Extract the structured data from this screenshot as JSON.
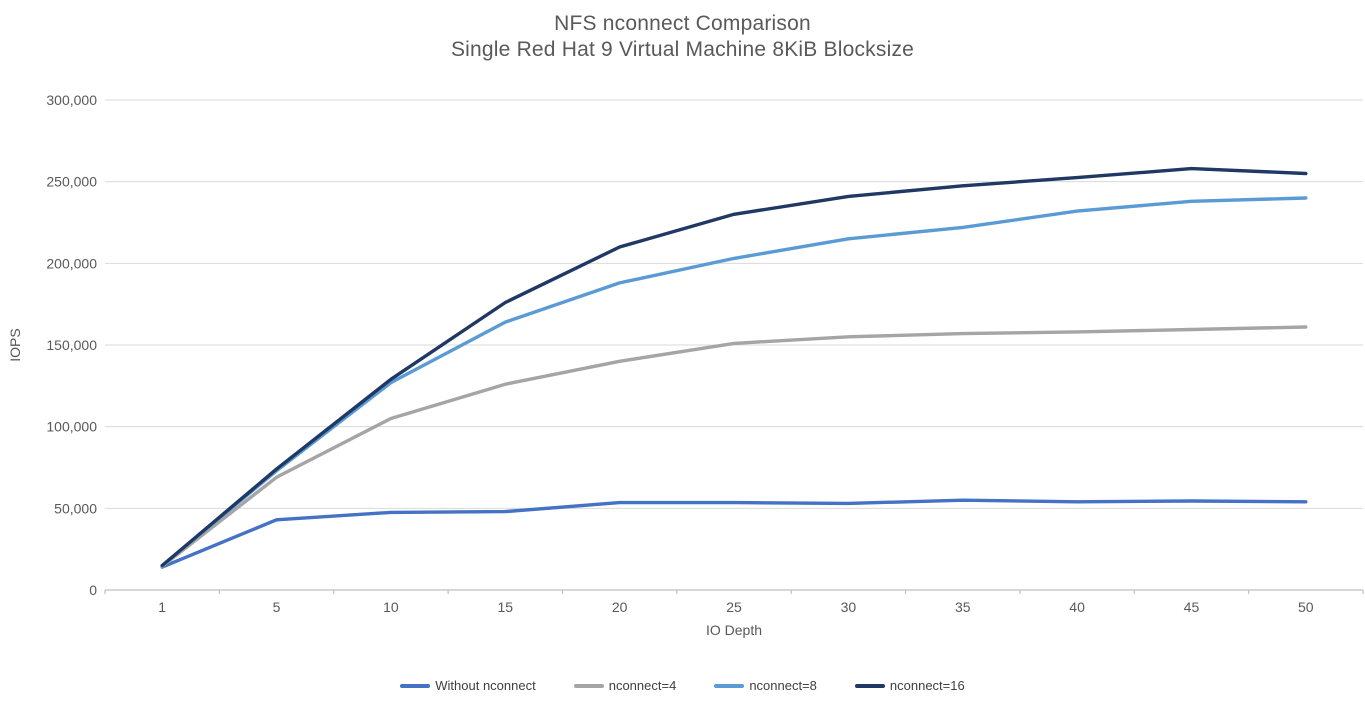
{
  "title": {
    "line1": "NFS nconnect Comparison",
    "line2": "Single Red Hat 9 Virtual Machine 8KiB Blocksize"
  },
  "chart_data": {
    "type": "line",
    "title": "NFS nconnect Comparison",
    "subtitle": "Single Red Hat 9 Virtual Machine 8KiB Blocksize",
    "xlabel": "IO Depth",
    "ylabel": "IOPS",
    "categories": [
      1,
      5,
      10,
      15,
      20,
      25,
      30,
      35,
      40,
      45,
      50
    ],
    "series": [
      {
        "name": "Without nconnect",
        "color": "#4472C4",
        "values": [
          14000,
          43000,
          47500,
          48000,
          53500,
          53500,
          53000,
          55000,
          54000,
          54500,
          54000
        ]
      },
      {
        "name": "nconnect=4",
        "color": "#A5A5A5",
        "values": [
          14500,
          69000,
          105000,
          126000,
          140000,
          151000,
          155000,
          157000,
          158000,
          159500,
          161000
        ]
      },
      {
        "name": "nconnect=8",
        "color": "#5B9BD5",
        "values": [
          15000,
          73000,
          127000,
          164000,
          188000,
          203000,
          215000,
          222000,
          232000,
          238000,
          240000
        ]
      },
      {
        "name": "nconnect=16",
        "color": "#1F3864",
        "values": [
          15000,
          74000,
          129000,
          176000,
          210000,
          230000,
          241000,
          247500,
          252500,
          258000,
          255000
        ]
      }
    ],
    "ylim": [
      0,
      300000
    ],
    "ytick_step": 50000,
    "grid": true,
    "legend_position": "bottom"
  },
  "colors": {
    "title_text": "#595959",
    "axis_text": "#595959",
    "legend_text": "#404040",
    "gridline": "#D9D9D9",
    "axis_line": "#BFBFBF",
    "background": "#FFFFFF"
  }
}
